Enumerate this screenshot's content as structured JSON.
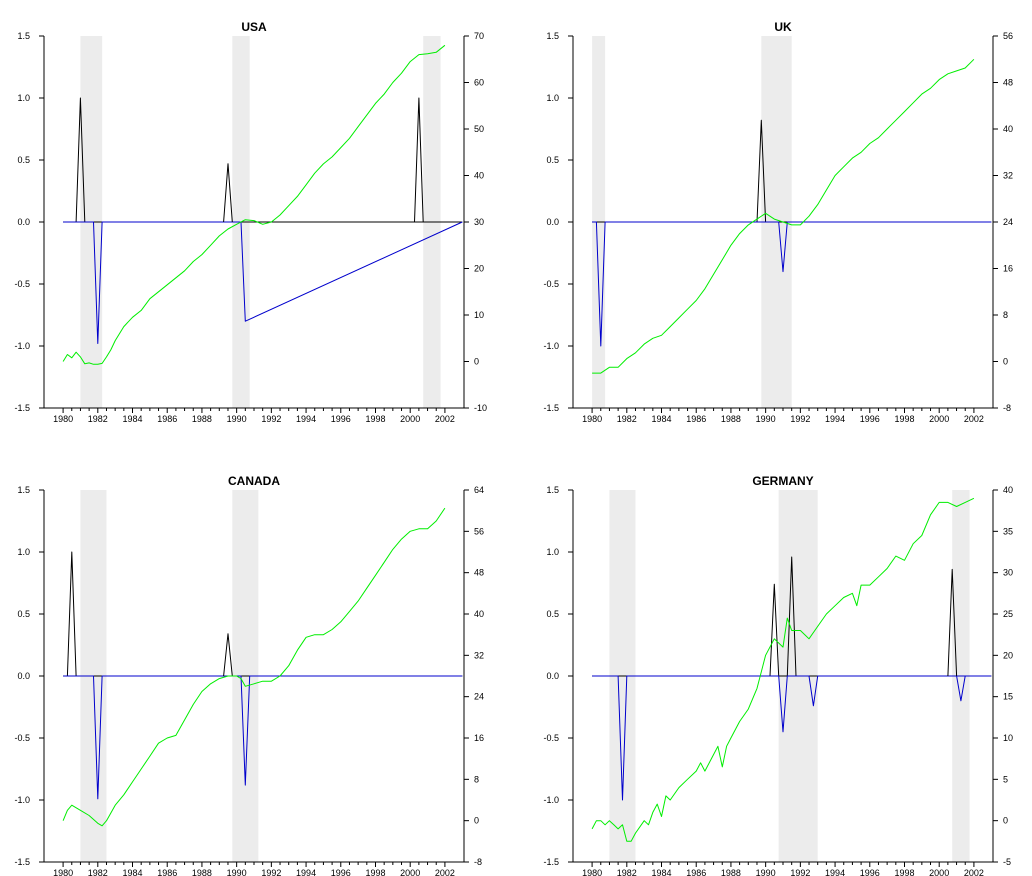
{
  "chart_data": [
    {
      "type": "line",
      "title": "USA",
      "x_tick_labels": [
        "1980",
        "1982",
        "1984",
        "1986",
        "1988",
        "1990",
        "1992",
        "1994",
        "1996",
        "1998",
        "2000",
        "2002"
      ],
      "xlim": [
        1978.9,
        2003.1
      ],
      "ylim_left": [
        -1.5,
        1.5
      ],
      "left_ticks": [
        "-1.5",
        "-1.0",
        "-0.5",
        "0.0",
        "0.5",
        "1.0",
        "1.5"
      ],
      "ylim_right": [
        -10,
        70
      ],
      "right_ticks": [
        "-10",
        "0",
        "10",
        "20",
        "30",
        "40",
        "50",
        "60",
        "70"
      ],
      "recession_shading": [
        [
          1981.0,
          1982.25
        ],
        [
          1989.75,
          1990.75
        ],
        [
          2000.75,
          2001.75
        ]
      ],
      "series": [
        {
          "axis": "left",
          "color": "#000000",
          "x": [
            1980,
            1980.75,
            1981,
            1981.25,
            2003
          ],
          "y": [
            0,
            0,
            1.0,
            0,
            0
          ]
        },
        {
          "axis": "left",
          "color": "#0000cc",
          "x": [
            1980,
            1981.25,
            1981.75,
            1982,
            1982.25,
            1989.75,
            1990,
            1990.25,
            1990.5,
            2003
          ],
          "y": [
            0,
            0,
            0,
            -0.98,
            0,
            0,
            0,
            0,
            -0.8,
            0
          ]
        },
        {
          "axis": "left",
          "color": "#000000",
          "x": [
            1989.25,
            1989.5,
            1989.75
          ],
          "y": [
            0,
            0.47,
            0
          ]
        },
        {
          "axis": "left",
          "color": "#000000",
          "x": [
            2000.25,
            2000.5,
            2000.75
          ],
          "y": [
            0,
            1.0,
            0
          ]
        },
        {
          "axis": "right",
          "color": "#00ee00",
          "x": [
            1980,
            1980.25,
            1980.5,
            1980.75,
            1981,
            1981.25,
            1981.5,
            1981.75,
            1982,
            1982.25,
            1982.5,
            1982.75,
            1983,
            1983.5,
            1984,
            1984.5,
            1985,
            1985.5,
            1986,
            1986.5,
            1987,
            1987.5,
            1988,
            1988.5,
            1989,
            1989.5,
            1990,
            1990.5,
            1991,
            1991.5,
            1992,
            1992.5,
            1993,
            1993.5,
            1994,
            1994.5,
            1995,
            1995.5,
            1996,
            1996.5,
            1997,
            1997.5,
            1998,
            1998.5,
            1999,
            1999.5,
            2000,
            2000.5,
            2001,
            2001.5,
            2002
          ],
          "y": [
            0,
            1.5,
            0.8,
            2.0,
            1.0,
            -0.5,
            -0.3,
            -0.6,
            -0.6,
            -0.4,
            1.0,
            2.5,
            4.5,
            7.5,
            9.5,
            11,
            13.5,
            15,
            16.5,
            18,
            19.5,
            21.5,
            23,
            25,
            27,
            28.5,
            29.5,
            30.5,
            30.3,
            29.5,
            30,
            31.5,
            33.5,
            35.5,
            38,
            40.5,
            42.5,
            44,
            46,
            48,
            50.5,
            53,
            55.5,
            57.5,
            60,
            62,
            64.5,
            66,
            66.2,
            66.5,
            68
          ]
        }
      ]
    },
    {
      "type": "line",
      "title": "UK",
      "x_tick_labels": [
        "1980",
        "1982",
        "1984",
        "1986",
        "1988",
        "1990",
        "1992",
        "1994",
        "1996",
        "1998",
        "2000",
        "2002"
      ],
      "xlim": [
        1978.9,
        2003.1
      ],
      "ylim_left": [
        -1.5,
        1.5
      ],
      "left_ticks": [
        "-1.5",
        "-1.0",
        "-0.5",
        "0.0",
        "0.5",
        "1.0",
        "1.5"
      ],
      "ylim_right": [
        -8,
        56
      ],
      "right_ticks": [
        "-8",
        "0",
        "8",
        "16",
        "24",
        "32",
        "40",
        "48",
        "56"
      ],
      "recession_shading": [
        [
          1980.0,
          1980.75
        ],
        [
          1989.75,
          1991.5
        ]
      ],
      "series": [
        {
          "axis": "left",
          "color": "#000000",
          "x": [
            1980,
            1989.5,
            1989.75,
            1990,
            2003
          ],
          "y": [
            0,
            0,
            0.82,
            0,
            0
          ]
        },
        {
          "axis": "left",
          "color": "#0000cc",
          "x": [
            1980,
            1980.25,
            1980.5,
            1980.75,
            1990.75,
            1991,
            1991.25,
            2003
          ],
          "y": [
            0,
            0,
            -1.0,
            0,
            0,
            -0.4,
            0,
            0
          ]
        },
        {
          "axis": "right",
          "color": "#00ee00",
          "x": [
            1980,
            1980.5,
            1981,
            1981.5,
            1982,
            1982.5,
            1983,
            1983.5,
            1984,
            1984.5,
            1985,
            1985.5,
            1986,
            1986.5,
            1987,
            1987.5,
            1988,
            1988.5,
            1989,
            1989.5,
            1990,
            1990.5,
            1991,
            1991.5,
            1992,
            1992.5,
            1993,
            1993.5,
            1994,
            1994.5,
            1995,
            1995.5,
            1996,
            1996.5,
            1997,
            1997.5,
            1998,
            1998.5,
            1999,
            1999.5,
            2000,
            2000.5,
            2001,
            2001.5,
            2002
          ],
          "y": [
            -2,
            -2,
            -1,
            -1,
            0.5,
            1.5,
            3,
            4,
            4.5,
            6,
            7.5,
            9,
            10.5,
            12.5,
            15,
            17.5,
            20,
            22,
            23.5,
            24.5,
            25.5,
            24.5,
            24,
            23.5,
            23.5,
            25,
            27,
            29.5,
            32,
            33.5,
            35,
            36,
            37.5,
            38.5,
            40,
            41.5,
            43,
            44.5,
            46,
            47,
            48.5,
            49.5,
            50,
            50.5,
            52
          ]
        }
      ]
    },
    {
      "type": "line",
      "title": "CANADA",
      "x_tick_labels": [
        "1980",
        "1982",
        "1984",
        "1986",
        "1988",
        "1990",
        "1992",
        "1994",
        "1996",
        "1998",
        "2000",
        "2002"
      ],
      "xlim": [
        1978.9,
        2003.1
      ],
      "ylim_left": [
        -1.5,
        1.5
      ],
      "left_ticks": [
        "-1.5",
        "-1.0",
        "-0.5",
        "0.0",
        "0.5",
        "1.0",
        "1.5"
      ],
      "ylim_right": [
        -8,
        64
      ],
      "right_ticks": [
        "-8",
        "0",
        "8",
        "16",
        "24",
        "32",
        "40",
        "48",
        "56",
        "64"
      ],
      "recession_shading": [
        [
          1981.0,
          1982.5
        ],
        [
          1989.75,
          1991.25
        ]
      ],
      "series": [
        {
          "axis": "left",
          "color": "#000000",
          "x": [
            1980,
            1980.25,
            1980.5,
            1980.75,
            2003
          ],
          "y": [
            0,
            0,
            1.0,
            0,
            0
          ]
        },
        {
          "axis": "left",
          "color": "#0000cc",
          "x": [
            1980,
            1981.75,
            1982,
            1982.25,
            1990.25,
            1990.5,
            1990.75,
            2003
          ],
          "y": [
            0,
            0,
            -0.99,
            0,
            0,
            -0.88,
            0,
            0
          ]
        },
        {
          "axis": "left",
          "color": "#000000",
          "x": [
            1989.25,
            1989.5,
            1989.75
          ],
          "y": [
            0,
            0.34,
            0
          ]
        },
        {
          "axis": "right",
          "color": "#00ee00",
          "x": [
            1980,
            1980.25,
            1980.5,
            1981,
            1981.5,
            1982,
            1982.25,
            1982.5,
            1983,
            1983.5,
            1984,
            1984.5,
            1985,
            1985.5,
            1986,
            1986.5,
            1987,
            1987.5,
            1988,
            1988.5,
            1989,
            1989.5,
            1990,
            1990.25,
            1990.5,
            1991,
            1991.5,
            1992,
            1992.5,
            1993,
            1993.5,
            1994,
            1994.5,
            1995,
            1995.5,
            1996,
            1996.5,
            1997,
            1997.5,
            1998,
            1998.5,
            1999,
            1999.5,
            2000,
            2000.5,
            2001,
            2001.5,
            2002
          ],
          "y": [
            0,
            2,
            3,
            2,
            1,
            -0.5,
            -1,
            0,
            3,
            5,
            7.5,
            10,
            12.5,
            15,
            16,
            16.5,
            19.5,
            22.5,
            25,
            26.5,
            27.5,
            28,
            28,
            27.5,
            26,
            26.5,
            27,
            27,
            28,
            30,
            33,
            35.5,
            36,
            36,
            37,
            38.5,
            40.5,
            42.5,
            45,
            47.5,
            50,
            52.5,
            54.5,
            56,
            56.5,
            56.5,
            58,
            60.5
          ]
        }
      ]
    },
    {
      "type": "line",
      "title": "GERMANY",
      "x_tick_labels": [
        "1980",
        "1982",
        "1984",
        "1986",
        "1988",
        "1990",
        "1992",
        "1994",
        "1996",
        "1998",
        "2000",
        "2002"
      ],
      "xlim": [
        1978.9,
        2003.1
      ],
      "ylim_left": [
        -1.5,
        1.5
      ],
      "left_ticks": [
        "-1.5",
        "-1.0",
        "-0.5",
        "0.0",
        "0.5",
        "1.0",
        "1.5"
      ],
      "ylim_right": [
        -5,
        40
      ],
      "right_ticks": [
        "-5",
        "0",
        "5",
        "10",
        "15",
        "20",
        "25",
        "30",
        "35",
        "40"
      ],
      "recession_shading": [
        [
          1981.0,
          1982.5
        ],
        [
          1990.75,
          1993.0
        ],
        [
          2000.75,
          2001.75
        ]
      ],
      "series": [
        {
          "axis": "left",
          "color": "#000000",
          "x": [
            1980,
            1990.25,
            1990.5,
            1990.75,
            1991.25,
            1991.5,
            1991.75,
            2003
          ],
          "y": [
            0,
            0,
            0.74,
            0,
            0,
            0.96,
            0,
            0
          ]
        },
        {
          "axis": "left",
          "color": "#0000cc",
          "x": [
            1980,
            1981.5,
            1981.75,
            1982,
            1990.75,
            1991,
            1991.25,
            1992.5,
            1992.75,
            1993,
            2003
          ],
          "y": [
            0,
            0,
            -1.0,
            0,
            0,
            -0.45,
            0,
            0,
            -0.24,
            0,
            0
          ]
        },
        {
          "axis": "left",
          "color": "#000000",
          "x": [
            2000.5,
            2000.75,
            2001.0
          ],
          "y": [
            0,
            0.86,
            0
          ]
        },
        {
          "axis": "left",
          "color": "#0000cc",
          "x": [
            2001.0,
            2001.25,
            2001.5
          ],
          "y": [
            0,
            -0.2,
            0
          ]
        },
        {
          "axis": "right",
          "color": "#00ee00",
          "x": [
            1980,
            1980.25,
            1980.5,
            1980.75,
            1981,
            1981.25,
            1981.5,
            1981.75,
            1982,
            1982.25,
            1982.5,
            1983,
            1983.25,
            1983.5,
            1983.75,
            1984,
            1984.25,
            1984.5,
            1985,
            1985.5,
            1986,
            1986.25,
            1986.5,
            1987,
            1987.25,
            1987.5,
            1987.75,
            1988,
            1988.5,
            1989,
            1989.5,
            1990,
            1990.5,
            1991,
            1991.25,
            1991.5,
            1992,
            1992.5,
            1993,
            1993.5,
            1994,
            1994.5,
            1995,
            1995.25,
            1995.5,
            1996,
            1996.5,
            1997,
            1997.5,
            1998,
            1998.5,
            1999,
            1999.5,
            2000,
            2000.5,
            2001,
            2001.5,
            2002
          ],
          "y": [
            -1,
            0,
            0,
            -0.5,
            0,
            -0.5,
            -1,
            -0.5,
            -2.5,
            -2.5,
            -1.5,
            0,
            -0.5,
            1,
            2,
            0.5,
            3,
            2.5,
            4,
            5,
            6,
            7,
            6,
            8,
            9,
            6.5,
            9,
            10,
            12,
            13.5,
            16,
            20,
            22,
            21,
            24.5,
            23,
            23,
            22,
            23.5,
            25,
            26,
            27,
            27.5,
            26,
            28.5,
            28.5,
            29.5,
            30.5,
            32,
            31.5,
            33.5,
            34.5,
            37,
            38.5,
            38.5,
            38,
            38.5,
            39
          ]
        }
      ]
    }
  ]
}
